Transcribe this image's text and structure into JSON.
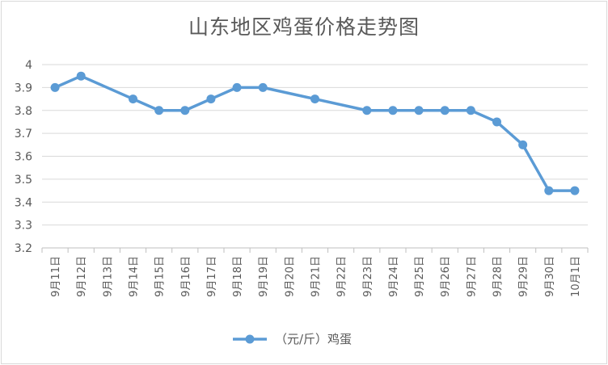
{
  "chart_data": {
    "type": "line",
    "title": "山东地区鸡蛋价格走势图",
    "categories": [
      "9月11日",
      "9月12日",
      "9月13日",
      "9月14日",
      "9月15日",
      "9月16日",
      "9月17日",
      "9月18日",
      "9月19日",
      "9月20日",
      "9月21日",
      "9月22日",
      "9月23日",
      "9月24日",
      "9月25日",
      "9月26日",
      "9月27日",
      "9月28日",
      "9月29日",
      "9月30日",
      "10月1日"
    ],
    "series": [
      {
        "name": "（元/斤）鸡蛋",
        "values": [
          3.9,
          3.95,
          null,
          3.85,
          3.8,
          3.8,
          3.85,
          3.9,
          3.9,
          null,
          3.85,
          null,
          3.8,
          3.8,
          3.8,
          3.8,
          3.8,
          3.75,
          3.65,
          3.45,
          3.45
        ],
        "color": "#5b9bd5"
      }
    ],
    "y_ticks": [
      "3.2",
      "3.3",
      "3.4",
      "3.5",
      "3.6",
      "3.7",
      "3.8",
      "3.9",
      "4"
    ],
    "ylim": [
      3.2,
      4.0
    ],
    "xlabel": "",
    "ylabel": "",
    "grid": true,
    "legend": "bottom",
    "gridline_color": "#d9d9d9",
    "axis_color": "#bfbfbf"
  }
}
